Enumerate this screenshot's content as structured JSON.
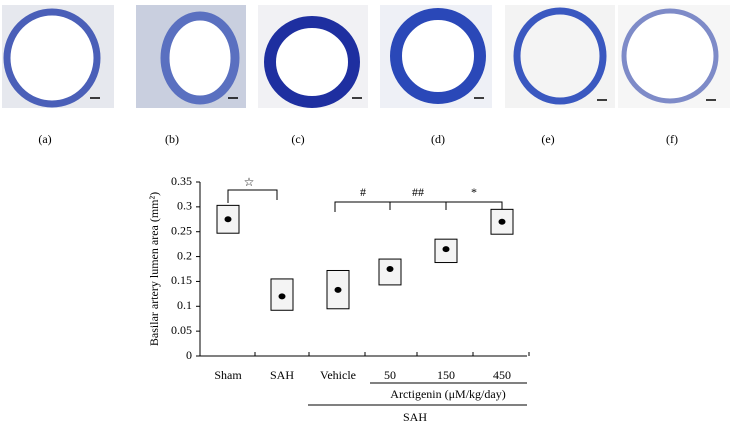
{
  "panels": [
    "(a)",
    "(b)",
    "(c)",
    "(d)",
    "(e)",
    "(f)"
  ],
  "chart_data": {
    "type": "box",
    "ylabel": "Basilar artery lumen area (mm²)",
    "categories": [
      "Sham",
      "SAH",
      "Vehicle",
      "50",
      "150",
      "450"
    ],
    "values": [
      0.275,
      0.12,
      0.133,
      0.175,
      0.215,
      0.27
    ],
    "lower": [
      0.247,
      0.092,
      0.095,
      0.143,
      0.188,
      0.245
    ],
    "upper": [
      0.303,
      0.155,
      0.172,
      0.195,
      0.235,
      0.295
    ],
    "ylim": [
      0,
      0.35
    ],
    "yticks": [
      0,
      0.05,
      0.1,
      0.15,
      0.2,
      0.25,
      0.3,
      0.35
    ],
    "annotations": [
      "☆",
      "#",
      "##",
      "*"
    ],
    "group_labels": [
      "Arctigenin (μM/kg/day)",
      "SAH"
    ],
    "color": "#000000"
  }
}
